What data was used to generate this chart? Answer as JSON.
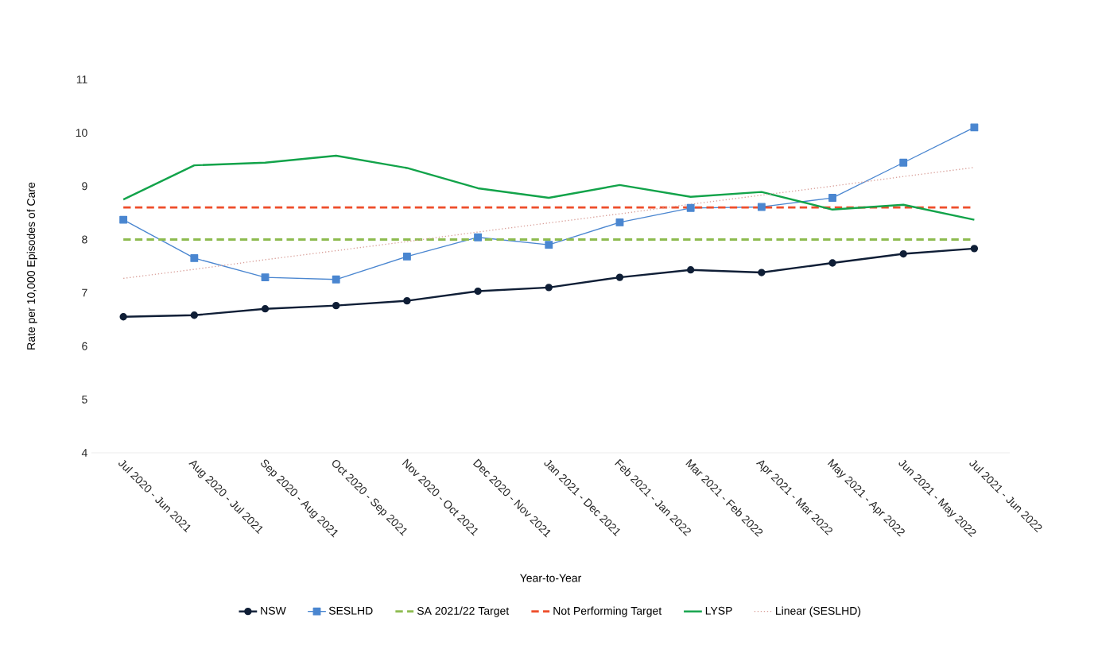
{
  "chart_data": {
    "type": "line",
    "xlabel": "Year-to-Year",
    "ylabel": "Rate per 10,000 Episodes of Care",
    "categories": [
      "Jul 2020 - Jun 2021",
      "Aug 2020 - Jul 2021",
      "Sep 2020 - Aug 2021",
      "Oct 2020 - Sep 2021",
      "Nov 2020 - Oct 2021",
      "Dec 2020 - Nov 2021",
      "Jan 2021 - Dec 2021",
      "Feb 2021 - Jan 2022",
      "Mar 2021 - Feb 2022",
      "Apr 2021 - Mar 2022",
      "May 2021 - Apr 2022",
      "Jun 2021 - May 2022",
      "Jul 2021 - Jun 2022"
    ],
    "ylim": [
      4,
      11
    ],
    "yticks": [
      4,
      5,
      6,
      7,
      8,
      9,
      10,
      11
    ],
    "grid": false,
    "legend": "bottom",
    "series": [
      {
        "name": "NSW",
        "color": "#0f1e36",
        "marker": "circle",
        "line_style": "solid",
        "values": [
          6.55,
          6.58,
          6.7,
          6.76,
          6.85,
          7.03,
          7.1,
          7.29,
          7.43,
          7.38,
          7.56,
          7.73,
          7.83
        ]
      },
      {
        "name": "SESLHD",
        "color": "#4a86d0",
        "marker": "square",
        "line_style": "solid",
        "values": [
          8.37,
          7.65,
          7.29,
          7.25,
          7.68,
          8.04,
          7.9,
          8.32,
          8.59,
          8.61,
          8.78,
          9.44,
          10.1
        ]
      },
      {
        "name": "SA 2021/22 Target",
        "color": "#8dbb4f",
        "marker": "none",
        "line_style": "dashed",
        "values": [
          8,
          8,
          8,
          8,
          8,
          8,
          8,
          8,
          8,
          8,
          8,
          8,
          8
        ]
      },
      {
        "name": "Not Performing Target",
        "color": "#ee4d2a",
        "marker": "none",
        "line_style": "dashed",
        "values": [
          8.6,
          8.6,
          8.6,
          8.6,
          8.6,
          8.6,
          8.6,
          8.6,
          8.6,
          8.6,
          8.6,
          8.6,
          8.6
        ]
      },
      {
        "name": "LYSP",
        "color": "#12a34a",
        "marker": "none",
        "line_style": "solid",
        "values": [
          8.75,
          9.39,
          9.44,
          9.57,
          9.34,
          8.96,
          8.78,
          9.02,
          8.8,
          8.89,
          8.56,
          8.65,
          8.37
        ]
      },
      {
        "name": "Linear (SESLHD)",
        "color": "#d9a09a",
        "marker": "none",
        "line_style": "dotted",
        "values": [
          7.27,
          7.44,
          7.62,
          7.79,
          7.96,
          8.14,
          8.31,
          8.48,
          8.66,
          8.83,
          9.0,
          9.18,
          9.35
        ]
      }
    ]
  }
}
